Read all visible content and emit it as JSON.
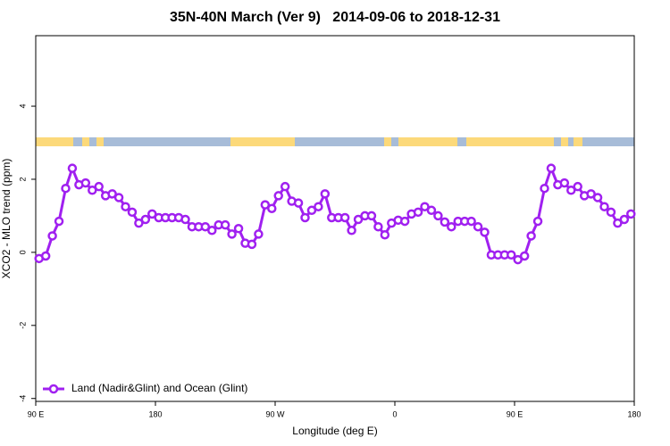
{
  "chart_data": {
    "type": "line",
    "title": "35N-40N March (Ver 9)   2014-09-06 to 2018-12-31",
    "x_label": "Longitude (deg E)",
    "y_label": "XCO2 - MLO trend (ppm)",
    "x": [
      92.5,
      97.5,
      102.5,
      107.5,
      112.5,
      117.5,
      122.5,
      127.5,
      132.5,
      137.5,
      142.5,
      147.5,
      152.5,
      157.5,
      162.5,
      167.5,
      172.5,
      177.5,
      182.5,
      187.5,
      192.5,
      197.5,
      202.5,
      207.5,
      212.5,
      217.5,
      222.5,
      227.5,
      232.5,
      237.5,
      242.5,
      247.5,
      252.5,
      257.5,
      262.5,
      267.5,
      272.5,
      277.5,
      282.5,
      287.5,
      292.5,
      297.5,
      302.5,
      307.5,
      312.5,
      317.5,
      322.5,
      327.5,
      332.5,
      337.5,
      342.5,
      347.5,
      352.5,
      357.5,
      362.5,
      367.5,
      372.5,
      377.5,
      382.5,
      387.5,
      392.5,
      397.5,
      402.5,
      407.5,
      412.5,
      417.5,
      422.5,
      427.5,
      432.5,
      437.5,
      442.5,
      447.5,
      452.5,
      457.5,
      462.5,
      467.5,
      472.5,
      477.5,
      482.5,
      487.5,
      492.5,
      497.5,
      502.5,
      507.5,
      512.5,
      517.5,
      522.5,
      527.5,
      532.5,
      537.5
    ],
    "series": [
      {
        "name": "Land (Nadir&Glint) and Ocean (Glint)",
        "color": "#a020f0",
        "values": [
          -0.17,
          -0.1,
          0.45,
          0.85,
          1.75,
          2.3,
          1.85,
          1.9,
          1.7,
          1.8,
          1.55,
          1.6,
          1.5,
          1.25,
          1.1,
          0.8,
          0.9,
          1.05,
          0.95,
          0.95,
          0.95,
          0.95,
          0.9,
          0.7,
          0.7,
          0.7,
          0.6,
          0.75,
          0.75,
          0.5,
          0.65,
          0.25,
          0.22,
          0.5,
          1.3,
          1.2,
          1.55,
          1.8,
          1.4,
          1.35,
          0.95,
          1.15,
          1.25,
          1.6,
          0.95,
          0.95,
          0.95,
          0.6,
          0.9,
          1.0,
          1.0,
          0.7,
          0.48,
          0.8,
          0.88,
          0.85,
          1.05,
          1.1,
          1.25,
          1.15,
          1.0,
          0.83,
          0.7,
          0.85,
          0.85,
          0.85,
          0.7,
          0.55,
          -0.07,
          -0.07,
          -0.07,
          -0.07,
          -0.2,
          -0.1,
          0.45,
          0.85,
          1.75,
          2.3,
          1.85,
          1.9,
          1.7,
          1.8,
          1.55,
          1.6,
          1.5,
          1.25,
          1.1,
          0.8,
          0.9,
          1.05
        ]
      }
    ],
    "xlim": [
      90,
      540
    ],
    "xticks": [
      {
        "value": 90,
        "label": "90 E"
      },
      180,
      {
        "value": 270,
        "label": "90 W"
      },
      {
        "value": 360,
        "label": "0"
      },
      {
        "value": 450,
        "label": "90 E"
      },
      {
        "value": 540,
        "label": "180"
      }
    ],
    "ylim": [
      -4.08,
      5.93
    ],
    "yticks": [
      -4,
      -2,
      0,
      2,
      4
    ],
    "legend": "bottom-left"
  }
}
